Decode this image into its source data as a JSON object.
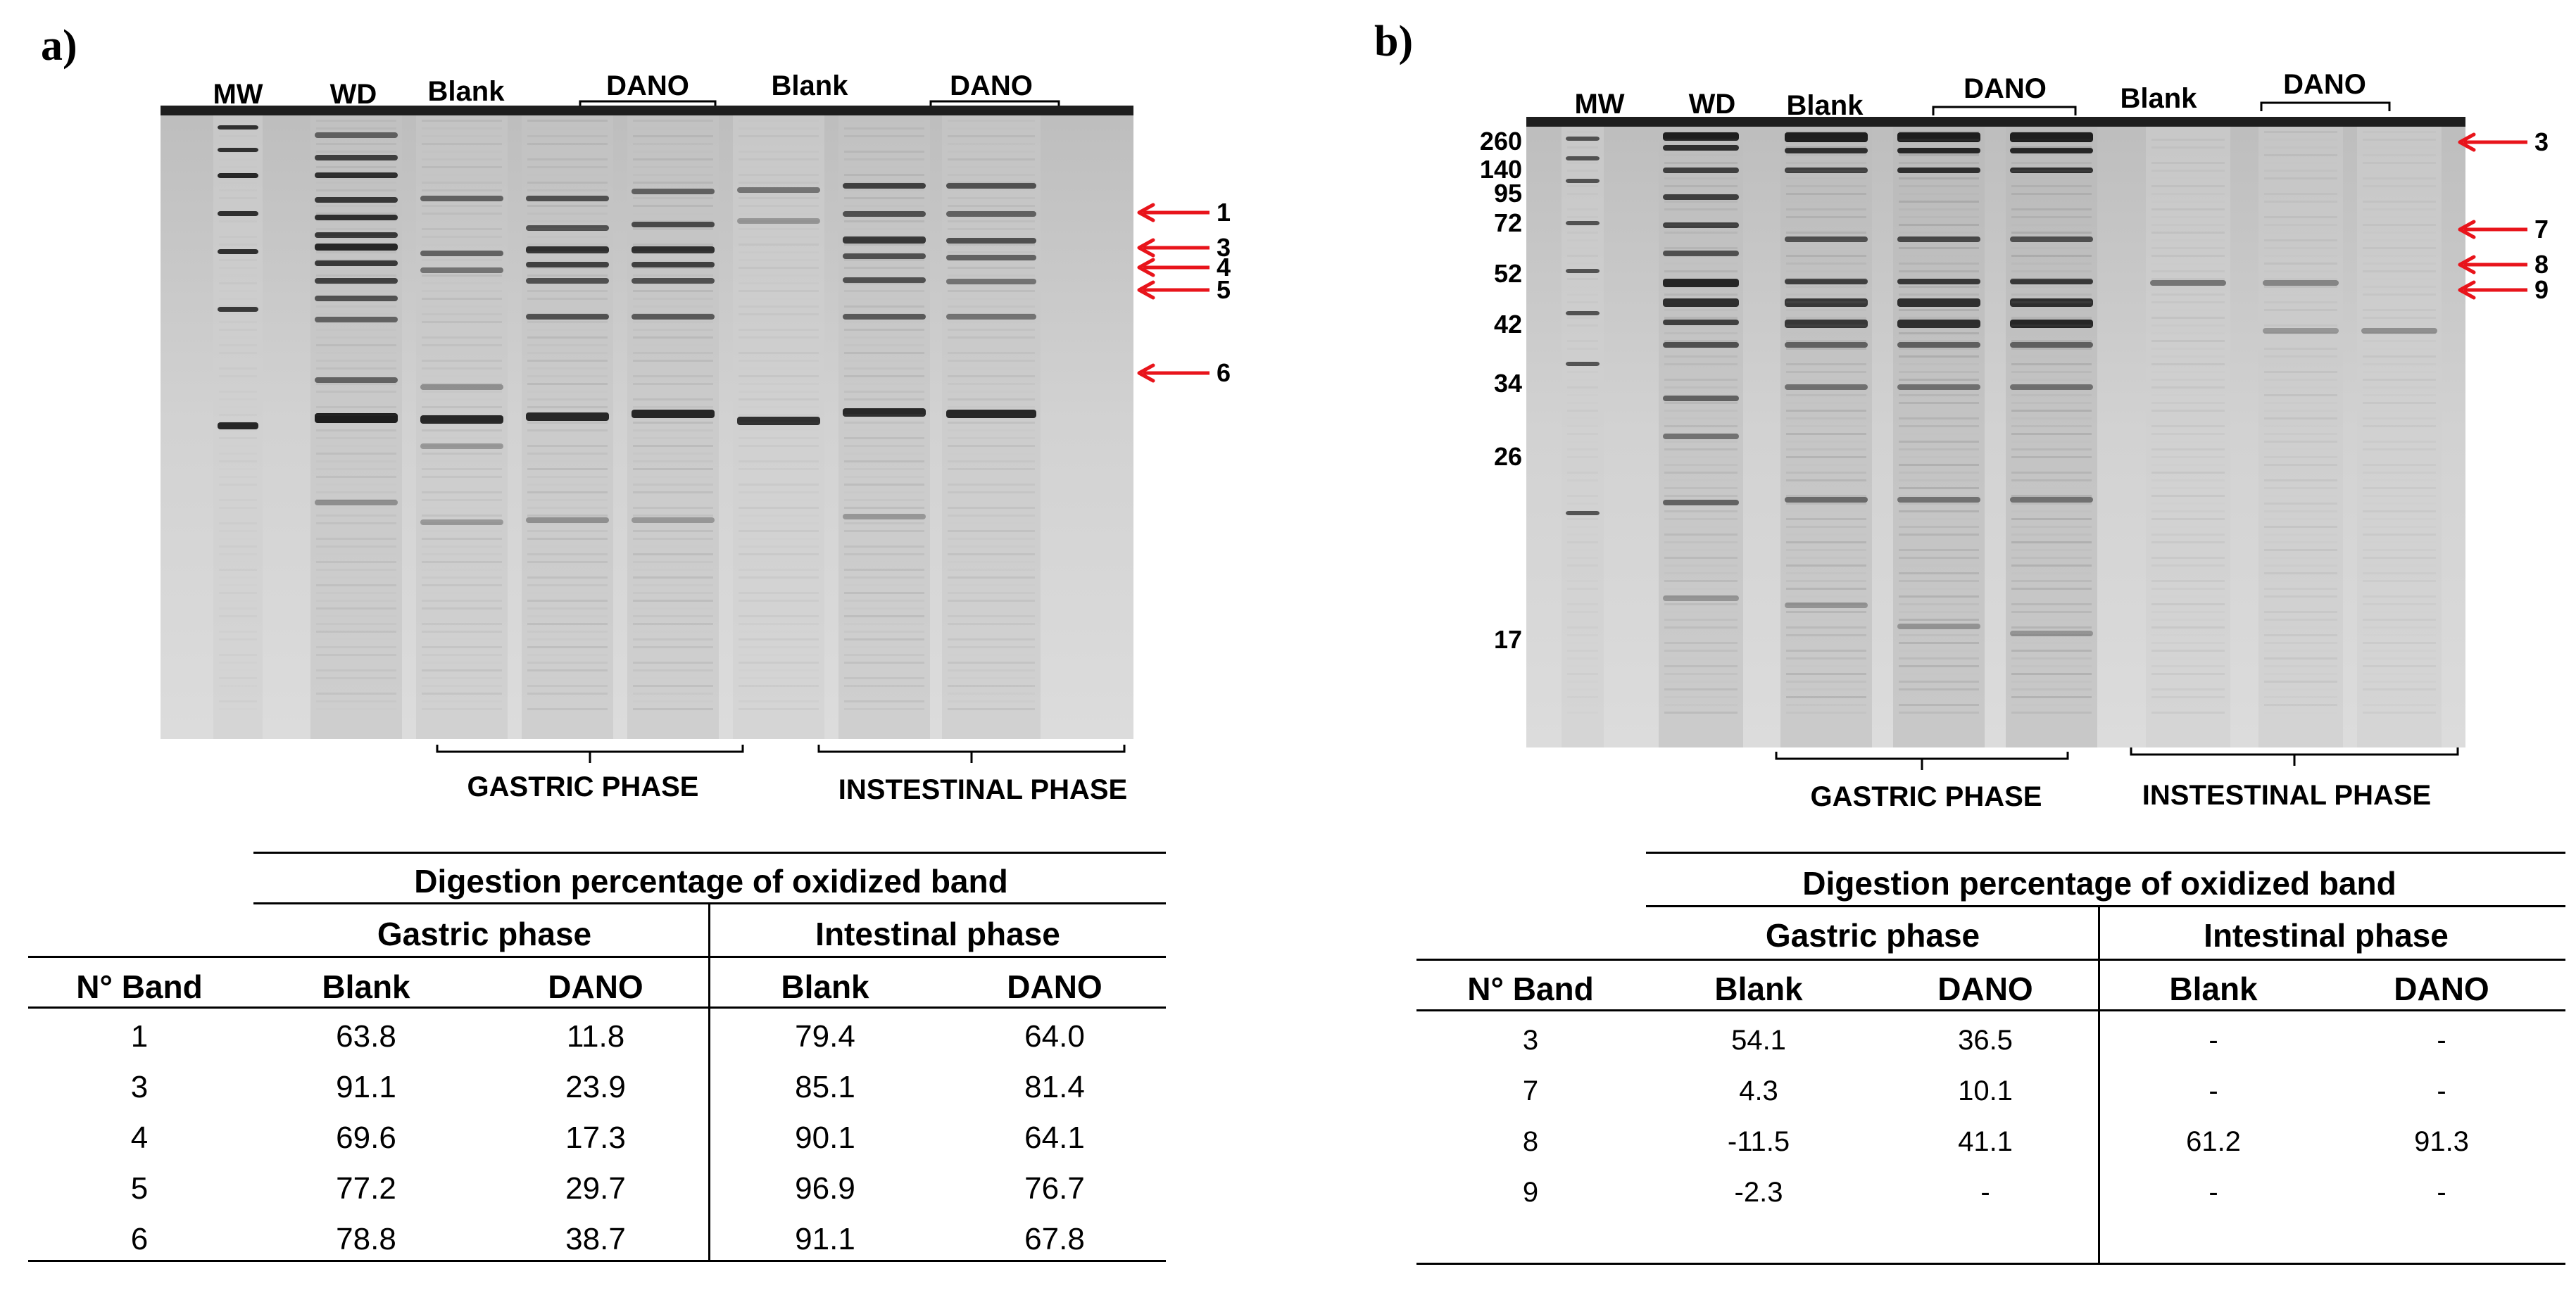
{
  "panel_a": {
    "letter": "a)",
    "lanes": [
      "MW",
      "WD",
      "Blank",
      "DANO",
      "Blank",
      "DANO"
    ],
    "phases": [
      "GASTRIC PHASE",
      "INSTESTINAL PHASE"
    ],
    "arrows": [
      "1",
      "3",
      "4",
      "5",
      "6"
    ],
    "table": {
      "title": "Digestion percentage of oxidized band",
      "group_gastric": "Gastric phase",
      "group_intestinal": "Intestinal phase",
      "col_band": "N° Band",
      "col_blank": "Blank",
      "col_dano": "DANO",
      "rows": [
        {
          "band": "1",
          "g_blank": "63.8",
          "g_dano": "11.8",
          "i_blank": "79.4",
          "i_dano": "64.0"
        },
        {
          "band": "3",
          "g_blank": "91.1",
          "g_dano": "23.9",
          "i_blank": "85.1",
          "i_dano": "81.4"
        },
        {
          "band": "4",
          "g_blank": "69.6",
          "g_dano": "17.3",
          "i_blank": "90.1",
          "i_dano": "64.1"
        },
        {
          "band": "5",
          "g_blank": "77.2",
          "g_dano": "29.7",
          "i_blank": "96.9",
          "i_dano": "76.7"
        },
        {
          "band": "6",
          "g_blank": "78.8",
          "g_dano": "38.7",
          "i_blank": "91.1",
          "i_dano": "67.8"
        }
      ]
    }
  },
  "panel_b": {
    "letter": "b)",
    "lanes": [
      "MW",
      "WD",
      "Blank",
      "DANO",
      "Blank",
      "DANO"
    ],
    "phases": [
      "GASTRIC PHASE",
      "INSTESTINAL PHASE"
    ],
    "mw_markers": [
      "260",
      "140",
      "95",
      "72",
      "52",
      "42",
      "34",
      "26",
      "17"
    ],
    "arrows": [
      "3",
      "7",
      "8",
      "9"
    ],
    "table": {
      "title": "Digestion percentage of oxidized band",
      "group_gastric": "Gastric phase",
      "group_intestinal": "Intestinal phase",
      "col_band": "N° Band",
      "col_blank": "Blank",
      "col_dano": "DANO",
      "rows": [
        {
          "band": "3",
          "g_blank": "54.1",
          "g_dano": "36.5",
          "i_blank": "-",
          "i_dano": "-"
        },
        {
          "band": "7",
          "g_blank": "4.3",
          "g_dano": "10.1",
          "i_blank": "-",
          "i_dano": "-"
        },
        {
          "band": "8",
          "g_blank": "-11.5",
          "g_dano": "41.1",
          "i_blank": "61.2",
          "i_dano": "91.3"
        },
        {
          "band": "9",
          "g_blank": "-2.3",
          "g_dano": "-",
          "i_blank": "-",
          "i_dano": "-"
        }
      ]
    }
  },
  "colors": {
    "arrow": "#e8141b",
    "gel_bg": "#d6d6d6",
    "band": "#2a2a2a"
  }
}
